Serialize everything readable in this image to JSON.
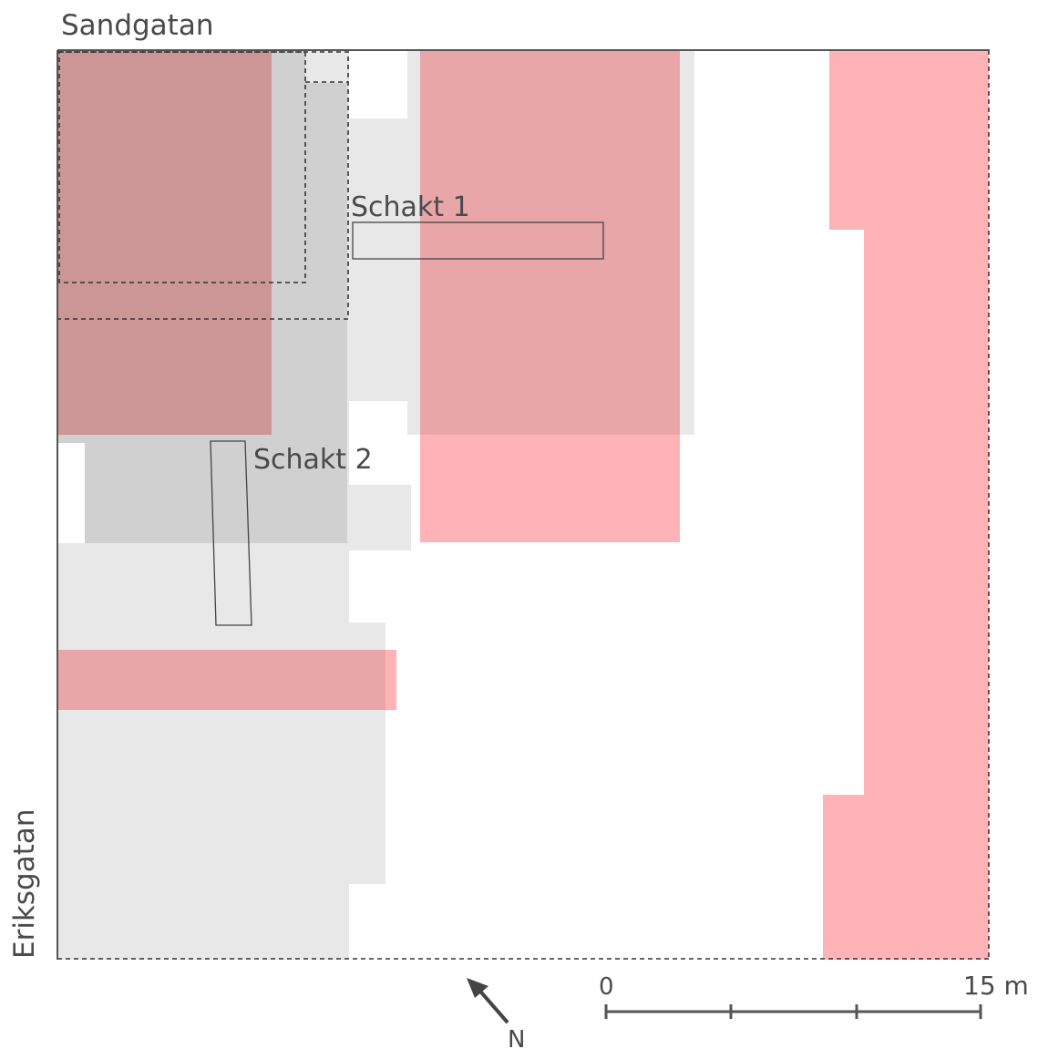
{
  "labels": {
    "street_top": "Sandgatan",
    "street_left": "Eriksgatan",
    "trench_1": "Schakt 1",
    "trench_2": "Schakt 2",
    "north": "N",
    "scale_start": "0",
    "scale_end": "15 m"
  },
  "colors": {
    "light_gray": "#e8e8e8",
    "mid_gray": "#d0d0d0",
    "pink": "#ffb3b6",
    "dark_rose": "#cc9596",
    "rose_on_gray": "#e8a6a8",
    "outline": "#555555"
  }
}
